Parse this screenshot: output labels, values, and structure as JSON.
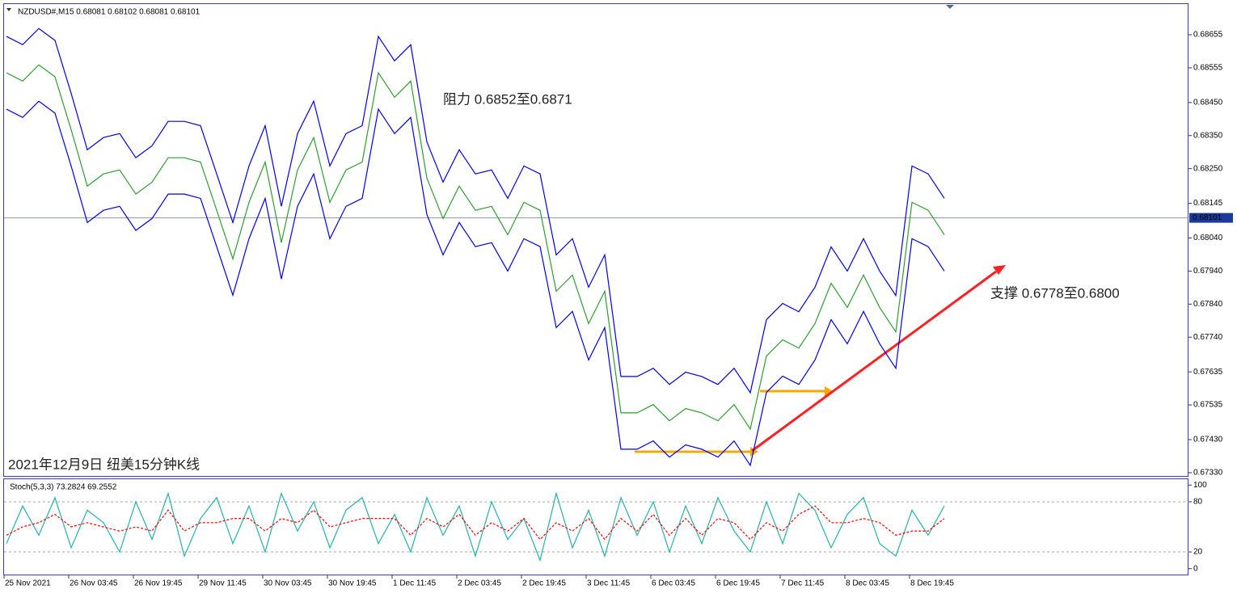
{
  "chart_data": [
    {
      "type": "line",
      "title": "NZDUSD#,M15  0.68081 0.68102 0.68081 0.68101",
      "annotations": [
        "阻力 0.6852至0.6871",
        "支撑 0.6778至0.6800",
        "2021年12月9日 纽美15分钟K线"
      ],
      "categories": [
        "25 Nov 2021",
        null,
        null,
        null,
        "26 Nov 03:45",
        null,
        null,
        null,
        "26 Nov 19:45",
        null,
        null,
        null,
        "29 Nov 11:45",
        null,
        null,
        null,
        "30 Nov 03:45",
        null,
        null,
        null,
        "30 Nov 19:45",
        null,
        null,
        null,
        "1 Dec 11:45",
        null,
        null,
        null,
        "2 Dec 03:45",
        null,
        null,
        null,
        "2 Dec 19:45",
        null,
        null,
        null,
        "3 Dec 11:45",
        null,
        null,
        null,
        "6 Dec 03:45",
        null,
        null,
        null,
        "6 Dec 19:45",
        null,
        null,
        null,
        "7 Dec 11:45",
        null,
        null,
        null,
        "8 Dec 03:45",
        null,
        null,
        null,
        "8 Dec 19:45",
        null,
        null
      ],
      "series": [
        {
          "color": "#2e9e2e",
          "values": [
            0.6854,
            0.68515,
            0.68564,
            0.68528,
            0.68368,
            0.68197,
            0.68234,
            0.68246,
            0.68173,
            0.68209,
            0.68283,
            0.68283,
            0.6827,
            0.68124,
            0.67977,
            0.68148,
            0.6827,
            0.68026,
            0.68246,
            0.68344,
            0.68148,
            0.68246,
            0.6827,
            0.6854,
            0.68466,
            0.68515,
            0.68221,
            0.68099,
            0.68197,
            0.68124,
            0.68136,
            0.6805,
            0.68148,
            0.68124,
            0.67879,
            0.67928,
            0.67781,
            0.67879,
            0.67511,
            0.67511,
            0.67536,
            0.67487,
            0.67524,
            0.67511,
            0.67487,
            0.67536,
            0.67462,
            0.67683,
            0.67732,
            0.67707,
            0.67781,
            0.67903,
            0.6783,
            0.67928,
            0.6783,
            0.67756,
            0.68148,
            0.68124,
            0.6805
          ]
        },
        {
          "color": "#0000e0",
          "values": [
            0.6865,
            0.68625,
            0.68674,
            0.68638,
            0.68478,
            0.68307,
            0.68344,
            0.68356,
            0.68283,
            0.68319,
            0.68393,
            0.68393,
            0.6838,
            0.68234,
            0.68087,
            0.68258,
            0.6838,
            0.68136,
            0.68356,
            0.68454,
            0.68258,
            0.68356,
            0.6838,
            0.6865,
            0.68576,
            0.68625,
            0.68331,
            0.68209,
            0.68307,
            0.68234,
            0.68246,
            0.6816,
            0.68258,
            0.68234,
            0.67989,
            0.68038,
            0.67891,
            0.67989,
            0.67621,
            0.67621,
            0.67646,
            0.67597,
            0.67634,
            0.67621,
            0.67597,
            0.67646,
            0.67572,
            0.67793,
            0.67842,
            0.67817,
            0.67891,
            0.68013,
            0.6794,
            0.68038,
            0.6794,
            0.67866,
            0.68258,
            0.68234,
            0.6816
          ]
        },
        {
          "color": "#0000e0",
          "values": [
            0.6843,
            0.68405,
            0.68454,
            0.68418,
            0.68258,
            0.68087,
            0.68124,
            0.68136,
            0.68063,
            0.68099,
            0.68173,
            0.68173,
            0.6816,
            0.68014,
            0.67867,
            0.68038,
            0.6816,
            0.67916,
            0.68136,
            0.68234,
            0.68038,
            0.68136,
            0.6816,
            0.6843,
            0.68356,
            0.68405,
            0.68111,
            0.67989,
            0.68087,
            0.68014,
            0.68026,
            0.6794,
            0.68038,
            0.68014,
            0.67769,
            0.67818,
            0.67671,
            0.67769,
            0.67401,
            0.67401,
            0.67426,
            0.67377,
            0.67414,
            0.67401,
            0.67377,
            0.67426,
            0.67352,
            0.67573,
            0.67622,
            0.67597,
            0.67671,
            0.67793,
            0.6772,
            0.67818,
            0.6772,
            0.67646,
            0.68038,
            0.68014,
            0.6794
          ]
        }
      ],
      "last_price": {
        "value": 0.68101,
        "label": "0.68101"
      },
      "ylim": [
        0.6732,
        0.68748
      ],
      "yticks": [
        {
          "value": 0.68655,
          "label": "0.68655"
        },
        {
          "value": 0.68555,
          "label": "0.68555"
        },
        {
          "value": 0.6845,
          "label": "0.68450"
        },
        {
          "value": 0.6835,
          "label": "0.68350"
        },
        {
          "value": 0.6825,
          "label": "0.68250"
        },
        {
          "value": 0.68145,
          "label": "0.68145"
        },
        {
          "value": 0.6804,
          "label": "0.68040"
        },
        {
          "value": 0.6794,
          "label": "0.67940"
        },
        {
          "value": 0.6784,
          "label": "0.67840"
        },
        {
          "value": 0.6774,
          "label": "0.67740"
        },
        {
          "value": 0.67635,
          "label": "0.67635"
        },
        {
          "value": 0.67535,
          "label": "0.67535"
        },
        {
          "value": 0.6743,
          "label": "0.67430"
        },
        {
          "value": 0.6733,
          "label": "0.67330"
        }
      ]
    },
    {
      "type": "line",
      "title": "Stoch(5,3,3) 73.2824 69.2552",
      "series": [
        {
          "color": "#20b2aa",
          "values": [
            30,
            75,
            40,
            85,
            25,
            70,
            55,
            20,
            80,
            35,
            90,
            15,
            60,
            85,
            30,
            75,
            20,
            90,
            45,
            80,
            25,
            70,
            85,
            30,
            65,
            20,
            85,
            40,
            75,
            15,
            80,
            35,
            60,
            10,
            90,
            25,
            70,
            15,
            85,
            40,
            80,
            20,
            75,
            30,
            85,
            45,
            20,
            80,
            30,
            90,
            70,
            25,
            65,
            85,
            30,
            15,
            70,
            40,
            75
          ]
        },
        {
          "color": "#ff0000",
          "dashed": true,
          "values": [
            40,
            50,
            55,
            65,
            50,
            55,
            50,
            45,
            50,
            45,
            70,
            45,
            55,
            55,
            60,
            60,
            45,
            60,
            55,
            70,
            50,
            55,
            60,
            60,
            60,
            40,
            60,
            50,
            65,
            40,
            55,
            45,
            60,
            35,
            55,
            45,
            60,
            35,
            60,
            45,
            65,
            40,
            60,
            40,
            60,
            55,
            35,
            55,
            45,
            65,
            75,
            55,
            55,
            60,
            55,
            40,
            45,
            45,
            60
          ]
        }
      ],
      "levels": [
        20,
        80
      ],
      "ylim": [
        -8,
        107
      ],
      "yticks": [
        0,
        20,
        80,
        100
      ]
    }
  ]
}
